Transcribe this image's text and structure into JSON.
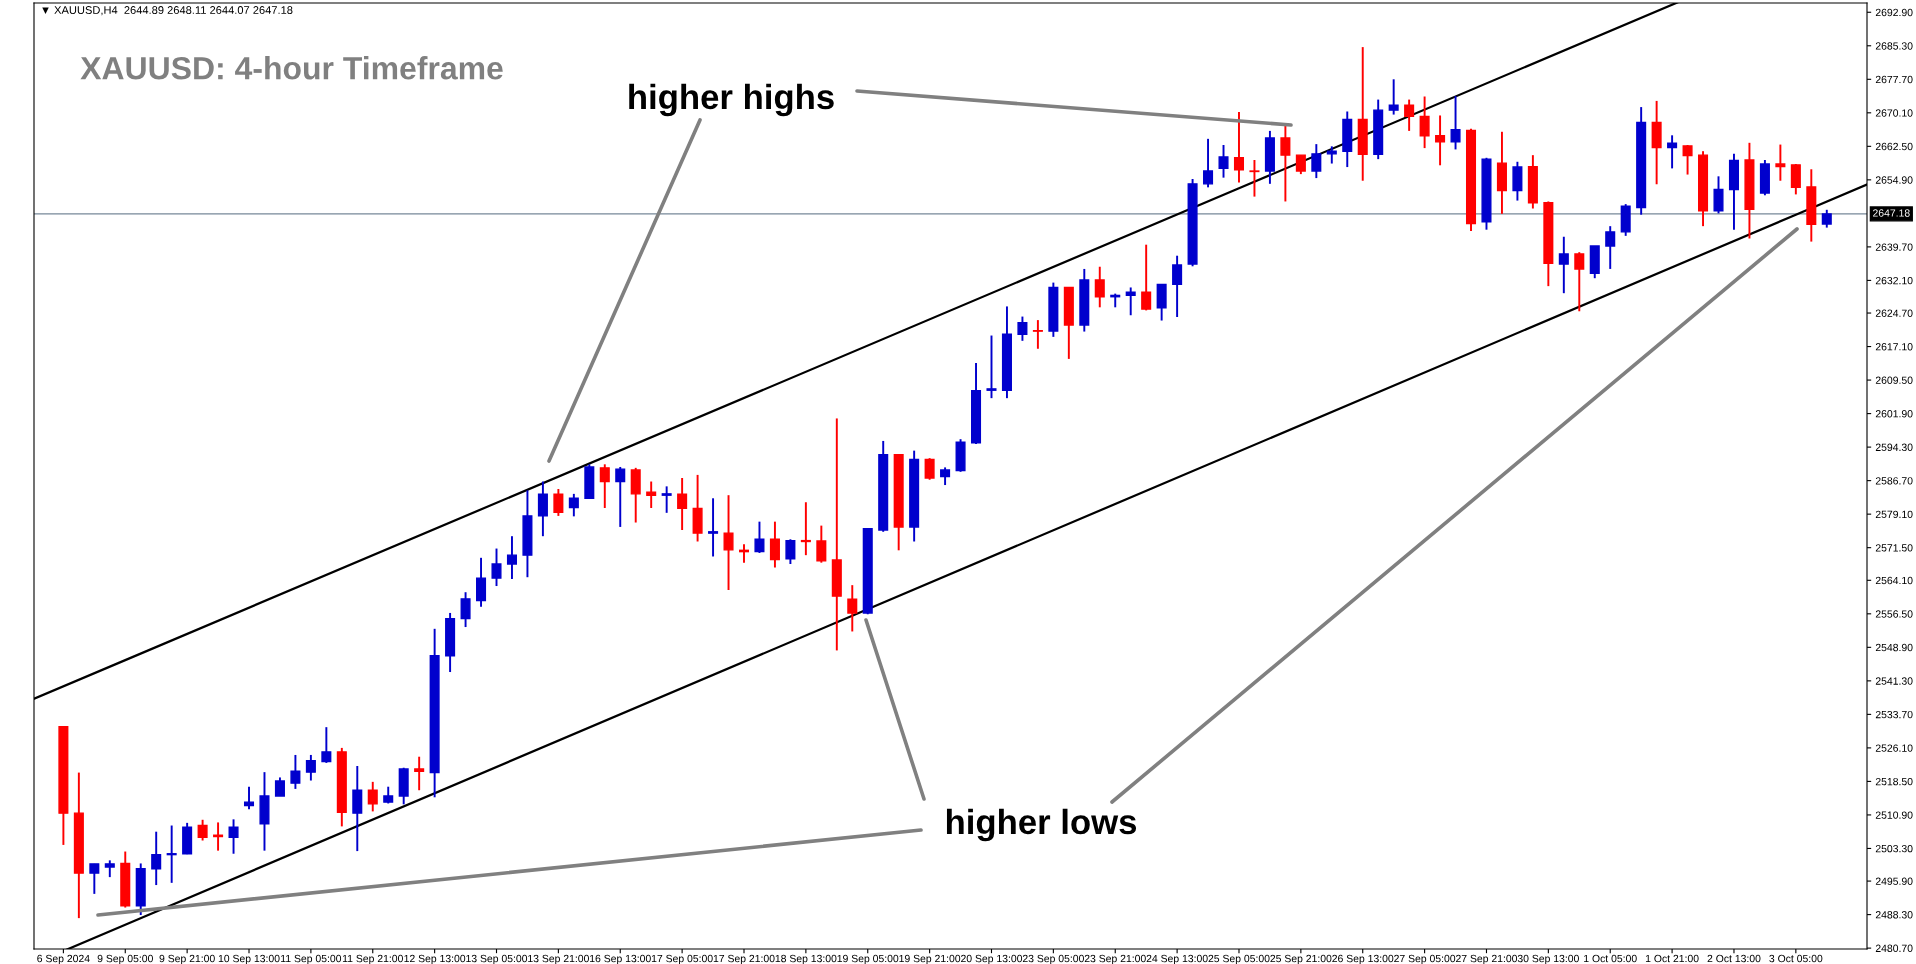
{
  "chart_data": {
    "type": "candlestick",
    "title": "XAUUSD: 4-hour Timeframe",
    "annotations": [
      "▼ XAUUSD,H4  2644.89 2648.11 2644.07 2647.18",
      "higher highs",
      "higher lows"
    ],
    "categories": [
      "6 Sep 2024",
      null,
      null,
      null,
      "9 Sep 05:00",
      null,
      null,
      null,
      "9 Sep 21:00",
      null,
      null,
      null,
      "10 Sep 13:00",
      null,
      null,
      null,
      "11 Sep 05:00",
      null,
      null,
      null,
      "11 Sep 21:00",
      null,
      null,
      null,
      "12 Sep 13:00",
      null,
      null,
      null,
      "13 Sep 05:00",
      null,
      null,
      null,
      "13 Sep 21:00",
      null,
      null,
      null,
      "16 Sep 13:00",
      null,
      null,
      null,
      "17 Sep 05:00",
      null,
      null,
      null,
      "17 Sep 21:00",
      null,
      null,
      null,
      "18 Sep 13:00",
      null,
      null,
      null,
      "19 Sep 05:00",
      null,
      null,
      null,
      "19 Sep 21:00",
      null,
      null,
      null,
      "20 Sep 13:00",
      null,
      null,
      null,
      "23 Sep 05:00",
      null,
      null,
      null,
      "23 Sep 21:00",
      null,
      null,
      null,
      "24 Sep 13:00",
      null,
      null,
      null,
      "25 Sep 05:00",
      null,
      null,
      null,
      "25 Sep 21:00",
      null,
      null,
      null,
      "26 Sep 13:00",
      null,
      null,
      null,
      "27 Sep 05:00",
      null,
      null,
      null,
      "27 Sep 21:00",
      null,
      null,
      null,
      "30 Sep 13:00",
      null,
      null,
      null,
      "1 Oct 05:00",
      null,
      null,
      null,
      "1 Oct 21:00",
      null,
      null,
      null,
      "2 Oct 13:00",
      null,
      null,
      null,
      "3 Oct 05:00",
      null,
      null
    ],
    "ohlc": [
      [
        2530.9,
        2530.9,
        2504.1,
        2511.3
      ],
      [
        2511.3,
        2520.5,
        2487.5,
        2497.7
      ],
      [
        2497.7,
        2499.8,
        2493.0,
        2499.8
      ],
      [
        2499.1,
        2500.6,
        2496.8,
        2499.8
      ],
      [
        2499.9,
        2502.6,
        2489.9,
        2490.3
      ],
      [
        2490.3,
        2499.9,
        2488.2,
        2498.7
      ],
      [
        2498.7,
        2507.1,
        2495.0,
        2501.9
      ],
      [
        2501.9,
        2508.5,
        2495.5,
        2502.1
      ],
      [
        2502.1,
        2509.1,
        2502.0,
        2508.1
      ],
      [
        2508.5,
        2509.8,
        2505.1,
        2505.8
      ],
      [
        2506.3,
        2509.2,
        2502.8,
        2506.0
      ],
      [
        2505.8,
        2509.9,
        2502.1,
        2508.1
      ],
      [
        2513.0,
        2517.3,
        2512.2,
        2513.8
      ],
      [
        2508.9,
        2520.6,
        2502.8,
        2515.2
      ],
      [
        2515.2,
        2519.4,
        2515.2,
        2518.6
      ],
      [
        2518.1,
        2524.5,
        2516.8,
        2520.8
      ],
      [
        2520.6,
        2524.5,
        2518.7,
        2523.2
      ],
      [
        2523.0,
        2530.8,
        2522.7,
        2525.2
      ],
      [
        2525.2,
        2526.1,
        2508.3,
        2511.5
      ],
      [
        2511.3,
        2522.0,
        2502.7,
        2516.5
      ],
      [
        2516.5,
        2518.4,
        2511.7,
        2513.4
      ],
      [
        2513.8,
        2517.3,
        2513.5,
        2515.2
      ],
      [
        2515.2,
        2521.6,
        2513.3,
        2521.3
      ],
      [
        2521.3,
        2524.1,
        2516.5,
        2520.8
      ],
      [
        2520.5,
        2553.1,
        2514.9,
        2547.0
      ],
      [
        2547.0,
        2556.7,
        2543.3,
        2555.4
      ],
      [
        2555.4,
        2561.4,
        2553.5,
        2559.9
      ],
      [
        2559.5,
        2569.2,
        2558.1,
        2564.6
      ],
      [
        2564.6,
        2571.3,
        2562.8,
        2567.8
      ],
      [
        2567.8,
        2574.1,
        2564.4,
        2569.8
      ],
      [
        2569.8,
        2584.5,
        2564.8,
        2578.7
      ],
      [
        2578.7,
        2586.5,
        2574.1,
        2583.6
      ],
      [
        2583.6,
        2584.8,
        2578.7,
        2579.5
      ],
      [
        2580.6,
        2583.7,
        2578.6,
        2582.7
      ],
      [
        2582.7,
        2590.4,
        2582.7,
        2589.8
      ],
      [
        2589.6,
        2590.4,
        2580.5,
        2586.5
      ],
      [
        2586.5,
        2589.8,
        2576.2,
        2589.3
      ],
      [
        2589.1,
        2589.6,
        2577.2,
        2583.7
      ],
      [
        2584.1,
        2586.5,
        2580.5,
        2583.4
      ],
      [
        2583.4,
        2585.4,
        2579.4,
        2583.7
      ],
      [
        2583.6,
        2587.3,
        2575.5,
        2580.4
      ],
      [
        2580.4,
        2588.0,
        2572.9,
        2574.8
      ],
      [
        2574.8,
        2582.7,
        2569.5,
        2575.1
      ],
      [
        2574.8,
        2583.4,
        2561.9,
        2571.0
      ],
      [
        2570.9,
        2572.3,
        2568.1,
        2570.6
      ],
      [
        2570.6,
        2577.4,
        2570.3,
        2573.4
      ],
      [
        2573.4,
        2577.4,
        2567.0,
        2568.8
      ],
      [
        2569.0,
        2573.4,
        2567.8,
        2573.1
      ],
      [
        2573.1,
        2581.8,
        2569.8,
        2572.9
      ],
      [
        2573.0,
        2576.5,
        2568.1,
        2568.5
      ],
      [
        2568.7,
        2600.8,
        2548.2,
        2560.5
      ],
      [
        2559.8,
        2563.0,
        2552.5,
        2556.7
      ],
      [
        2556.7,
        2575.8,
        2556.4,
        2575.8
      ],
      [
        2575.5,
        2595.7,
        2575.1,
        2592.6
      ],
      [
        2592.6,
        2592.6,
        2570.9,
        2576.2
      ],
      [
        2576.2,
        2593.5,
        2572.9,
        2591.5
      ],
      [
        2591.5,
        2591.8,
        2586.9,
        2587.3
      ],
      [
        2587.6,
        2589.7,
        2585.7,
        2589.1
      ],
      [
        2589.0,
        2596.1,
        2588.7,
        2595.4
      ],
      [
        2595.3,
        2613.4,
        2595.0,
        2607.1
      ],
      [
        2607.2,
        2619.6,
        2605.4,
        2607.5
      ],
      [
        2607.2,
        2626.2,
        2605.4,
        2619.9
      ],
      [
        2619.9,
        2623.9,
        2618.4,
        2622.5
      ],
      [
        2620.7,
        2623.1,
        2616.6,
        2620.6
      ],
      [
        2620.6,
        2631.6,
        2619.3,
        2630.5
      ],
      [
        2630.5,
        2630.5,
        2614.3,
        2622.0
      ],
      [
        2622.0,
        2634.7,
        2620.5,
        2632.2
      ],
      [
        2632.2,
        2635.2,
        2626.0,
        2628.4
      ],
      [
        2628.4,
        2629.1,
        2626.0,
        2628.7
      ],
      [
        2628.7,
        2630.5,
        2624.2,
        2629.4
      ],
      [
        2629.4,
        2640.2,
        2625.3,
        2625.6
      ],
      [
        2625.9,
        2631.2,
        2623.0,
        2631.2
      ],
      [
        2631.2,
        2637.7,
        2623.8,
        2635.6
      ],
      [
        2635.8,
        2655.1,
        2635.3,
        2654.0
      ],
      [
        2654.0,
        2664.2,
        2653.2,
        2656.9
      ],
      [
        2657.5,
        2662.8,
        2655.4,
        2660.1
      ],
      [
        2659.9,
        2670.3,
        2654.3,
        2657.2
      ],
      [
        2656.9,
        2659.4,
        2651.1,
        2656.8
      ],
      [
        2656.9,
        2666.0,
        2654.0,
        2664.4
      ],
      [
        2664.4,
        2667.4,
        2650.0,
        2660.5
      ],
      [
        2660.5,
        2660.5,
        2656.2,
        2656.9
      ],
      [
        2656.9,
        2663.0,
        2655.3,
        2660.8
      ],
      [
        2660.8,
        2662.5,
        2658.6,
        2661.4
      ],
      [
        2661.4,
        2670.4,
        2657.8,
        2668.6
      ],
      [
        2668.6,
        2685.0,
        2654.7,
        2660.7
      ],
      [
        2660.7,
        2673.1,
        2659.6,
        2670.7
      ],
      [
        2670.7,
        2677.7,
        2669.7,
        2671.8
      ],
      [
        2671.8,
        2673.1,
        2666.0,
        2669.3
      ],
      [
        2669.3,
        2673.8,
        2662.1,
        2664.9
      ],
      [
        2664.9,
        2669.5,
        2658.2,
        2663.5
      ],
      [
        2663.5,
        2673.9,
        2661.8,
        2666.3
      ],
      [
        2666.1,
        2666.5,
        2643.3,
        2645.0
      ],
      [
        2645.4,
        2659.9,
        2643.6,
        2659.6
      ],
      [
        2658.7,
        2665.8,
        2647.2,
        2652.5
      ],
      [
        2652.5,
        2659.0,
        2650.2,
        2657.8
      ],
      [
        2657.9,
        2660.5,
        2648.4,
        2649.7
      ],
      [
        2649.7,
        2650.0,
        2630.8,
        2636.0
      ],
      [
        2635.8,
        2642.0,
        2629.2,
        2638.1
      ],
      [
        2638.1,
        2638.5,
        2625.1,
        2634.7
      ],
      [
        2633.7,
        2639.9,
        2632.6,
        2639.9
      ],
      [
        2639.9,
        2644.4,
        2634.7,
        2643.1
      ],
      [
        2643.1,
        2649.4,
        2642.2,
        2648.9
      ],
      [
        2648.6,
        2671.4,
        2647.0,
        2667.9
      ],
      [
        2667.9,
        2672.8,
        2653.9,
        2662.2
      ],
      [
        2662.2,
        2665.0,
        2657.5,
        2663.2
      ],
      [
        2662.6,
        2662.8,
        2656.1,
        2660.4
      ],
      [
        2660.5,
        2661.4,
        2644.4,
        2647.9
      ],
      [
        2647.9,
        2655.7,
        2647.3,
        2652.7
      ],
      [
        2652.7,
        2660.8,
        2643.6,
        2659.3
      ],
      [
        2659.4,
        2663.3,
        2641.6,
        2648.2
      ],
      [
        2651.9,
        2659.4,
        2651.4,
        2658.5
      ],
      [
        2658.5,
        2662.9,
        2654.7,
        2657.9
      ],
      [
        2658.3,
        2658.5,
        2651.6,
        2653.2
      ],
      [
        2653.3,
        2657.3,
        2640.9,
        2644.8
      ],
      [
        2644.89,
        2648.11,
        2644.07,
        2647.18
      ]
    ],
    "colors": [
      "#ff0000",
      "#ff0000",
      "#0000cd",
      "#0000cd",
      "#ff0000",
      "#0000cd",
      "#0000cd",
      "#0000cd",
      "#0000cd",
      "#ff0000",
      "#ff0000",
      "#0000cd",
      "#0000cd",
      "#0000cd",
      "#0000cd",
      "#0000cd",
      "#0000cd",
      "#0000cd",
      "#ff0000",
      "#0000cd",
      "#ff0000",
      "#0000cd",
      "#0000cd",
      "#ff0000",
      "#0000cd",
      "#0000cd",
      "#0000cd",
      "#0000cd",
      "#0000cd",
      "#0000cd",
      "#0000cd",
      "#0000cd",
      "#ff0000",
      "#0000cd",
      "#0000cd",
      "#ff0000",
      "#0000cd",
      "#ff0000",
      "#ff0000",
      "#0000cd",
      "#ff0000",
      "#ff0000",
      "#0000cd",
      "#ff0000",
      "#ff0000",
      "#0000cd",
      "#ff0000",
      "#0000cd",
      "#ff0000",
      "#ff0000",
      "#ff0000",
      "#ff0000",
      "#0000cd",
      "#0000cd",
      "#ff0000",
      "#0000cd",
      "#ff0000",
      "#0000cd",
      "#0000cd",
      "#0000cd",
      "#0000cd",
      "#0000cd",
      "#0000cd",
      "#ff0000",
      "#0000cd",
      "#ff0000",
      "#0000cd",
      "#ff0000",
      "#0000cd",
      "#0000cd",
      "#ff0000",
      "#0000cd",
      "#0000cd",
      "#0000cd",
      "#0000cd",
      "#0000cd",
      "#ff0000",
      "#ff0000",
      "#0000cd",
      "#ff0000",
      "#ff0000",
      "#0000cd",
      "#0000cd",
      "#0000cd",
      "#ff0000",
      "#0000cd",
      "#0000cd",
      "#ff0000",
      "#ff0000",
      "#ff0000",
      "#0000cd",
      "#ff0000",
      "#0000cd",
      "#ff0000",
      "#0000cd",
      "#ff0000",
      "#ff0000",
      "#0000cd",
      "#ff0000",
      "#0000cd",
      "#0000cd",
      "#0000cd",
      "#0000cd",
      "#ff0000",
      "#0000cd",
      "#ff0000",
      "#ff0000",
      "#0000cd",
      "#0000cd",
      "#ff0000",
      "#0000cd",
      "#ff0000",
      "#ff0000",
      "#ff0000",
      "#0000cd"
    ],
    "series": [
      {
        "type": "line",
        "color": "#000000",
        "x": [
          "9 Sep 05:00",
          "3 Oct 05:00"
        ],
        "values": [
          2486,
          2647
        ]
      },
      {
        "type": "line",
        "color": "#000000",
        "x": [
          "9 Sep 05:00",
          "25 Sep 05:00"
        ],
        "values": [
          2546,
          2653
        ]
      }
    ],
    "ref_lines": [
      {
        "axis": "y",
        "value": 2647.18,
        "label": "2647.18",
        "color": "#778899"
      }
    ],
    "ylim": [
      2480.5,
      2695
    ],
    "yticks": [
      {
        "value": 2480.7,
        "label": "2480.70"
      },
      {
        "value": 2488.3,
        "label": "2488.30"
      },
      {
        "value": 2495.9,
        "label": "2495.90"
      },
      {
        "value": 2503.3,
        "label": "2503.30"
      },
      {
        "value": 2510.9,
        "label": "2510.90"
      },
      {
        "value": 2518.5,
        "label": "2518.50"
      },
      {
        "value": 2526.1,
        "label": "2526.10"
      },
      {
        "value": 2533.7,
        "label": "2533.70"
      },
      {
        "value": 2541.3,
        "label": "2541.30"
      },
      {
        "value": 2548.9,
        "label": "2548.90"
      },
      {
        "value": 2556.5,
        "label": "2556.50"
      },
      {
        "value": 2564.1,
        "label": "2564.10"
      },
      {
        "value": 2571.5,
        "label": "2571.50"
      },
      {
        "value": 2579.1,
        "label": "2579.10"
      },
      {
        "value": 2586.7,
        "label": "2586.70"
      },
      {
        "value": 2594.3,
        "label": "2594.30"
      },
      {
        "value": 2601.9,
        "label": "2601.90"
      },
      {
        "value": 2609.5,
        "label": "2609.50"
      },
      {
        "value": 2617.1,
        "label": "2617.10"
      },
      {
        "value": 2624.7,
        "label": "2624.70"
      },
      {
        "value": 2632.1,
        "label": "2632.10"
      },
      {
        "value": 2639.7,
        "label": "2639.70"
      },
      {
        "value": 2654.9,
        "label": "2654.90"
      },
      {
        "value": 2662.5,
        "label": "2662.50"
      },
      {
        "value": 2670.1,
        "label": "2670.10"
      },
      {
        "value": 2677.7,
        "label": "2677.70"
      },
      {
        "value": 2685.3,
        "label": "2685.30"
      },
      {
        "value": 2692.9,
        "label": "2692.90"
      }
    ],
    "grid": false
  }
}
